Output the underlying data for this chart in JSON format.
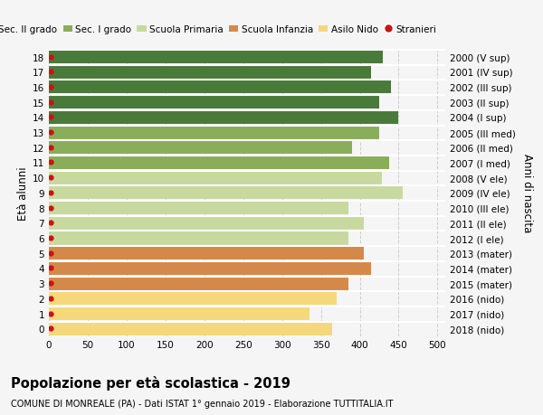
{
  "ages": [
    0,
    1,
    2,
    3,
    4,
    5,
    6,
    7,
    8,
    9,
    10,
    11,
    12,
    13,
    14,
    15,
    16,
    17,
    18
  ],
  "values": [
    365,
    335,
    370,
    385,
    415,
    405,
    385,
    405,
    385,
    455,
    428,
    438,
    390,
    425,
    450,
    425,
    440,
    415,
    430
  ],
  "right_labels": [
    "2018 (nido)",
    "2017 (nido)",
    "2016 (nido)",
    "2015 (mater)",
    "2014 (mater)",
    "2013 (mater)",
    "2012 (I ele)",
    "2011 (II ele)",
    "2010 (III ele)",
    "2009 (IV ele)",
    "2008 (V ele)",
    "2007 (I med)",
    "2006 (II med)",
    "2005 (III med)",
    "2004 (I sup)",
    "2003 (II sup)",
    "2002 (III sup)",
    "2001 (IV sup)",
    "2000 (V sup)"
  ],
  "bar_colors": [
    "#f5d87a",
    "#f5d87a",
    "#f5d87a",
    "#d4894a",
    "#d4894a",
    "#d4894a",
    "#c8d9a0",
    "#c8d9a0",
    "#c8d9a0",
    "#c8d9a0",
    "#c8d9a0",
    "#8aad5a",
    "#8aad5a",
    "#8aad5a",
    "#4a7a3a",
    "#4a7a3a",
    "#4a7a3a",
    "#4a7a3a",
    "#4a7a3a"
  ],
  "stranieri_x": 2,
  "stranieri_color": "#cc1111",
  "legend_items": [
    {
      "label": "Sec. II grado",
      "color": "#4a7a3a"
    },
    {
      "label": "Sec. I grado",
      "color": "#8aad5a"
    },
    {
      "label": "Scuola Primaria",
      "color": "#c8d9a0"
    },
    {
      "label": "Scuola Infanzia",
      "color": "#d4894a"
    },
    {
      "label": "Asilo Nido",
      "color": "#f5d87a"
    },
    {
      "label": "Stranieri",
      "color": "#cc1111"
    }
  ],
  "xlabel_values": [
    0,
    50,
    100,
    150,
    200,
    250,
    300,
    350,
    400,
    450,
    500
  ],
  "xlim": [
    0,
    510
  ],
  "ylim": [
    -0.5,
    18.5
  ],
  "ylabel": "Età alunni",
  "right_ylabel": "Anni di nascita",
  "title": "Popolazione per età scolastica - 2019",
  "subtitle": "COMUNE DI MONREALE (PA) - Dati ISTAT 1° gennaio 2019 - Elaborazione TUTTITALIA.IT",
  "background_color": "#f5f5f5",
  "grid_color": "#cccccc"
}
